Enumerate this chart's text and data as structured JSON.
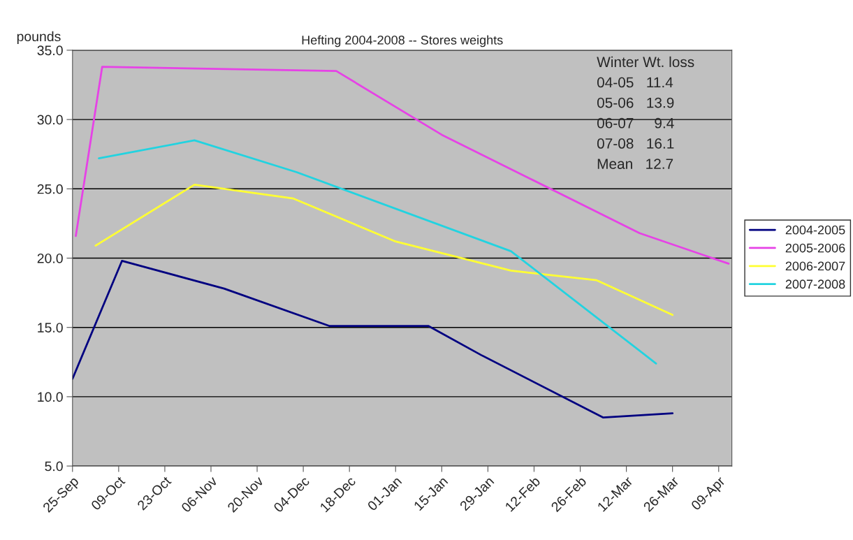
{
  "chart_data": {
    "type": "line",
    "title": "Hefting 2004-2008 -- Stores weights",
    "ylabel": "pounds",
    "series": [
      {
        "name": "2004-2005",
        "color": "#000080",
        "x": [
          "2004-09-25",
          "2004-10-10",
          "2004-11-10",
          "2004-12-12",
          "2005-01-11",
          "2005-01-27",
          "2005-03-05",
          "2005-03-26"
        ],
        "values": [
          11.3,
          19.8,
          17.8,
          15.1,
          15.1,
          13.0,
          8.5,
          8.8
        ]
      },
      {
        "name": "2005-2006",
        "color": "#e642e6",
        "x": [
          "2004-09-26",
          "2004-10-04",
          "2004-12-14",
          "2005-01-15",
          "2005-03-16",
          "2005-04-12"
        ],
        "values": [
          21.6,
          33.8,
          33.5,
          28.9,
          21.8,
          19.6
        ]
      },
      {
        "name": "2006-2007",
        "color": "#ffff33",
        "x": [
          "2004-10-02",
          "2004-11-01",
          "2004-12-01",
          "2005-01-01",
          "2005-02-05",
          "2005-03-03",
          "2005-03-26"
        ],
        "values": [
          20.9,
          25.3,
          24.3,
          21.2,
          19.1,
          18.4,
          15.9
        ]
      },
      {
        "name": "2007-2008",
        "color": "#22d3e0",
        "x": [
          "2004-10-03",
          "2004-11-01",
          "2004-12-02",
          "2005-02-05",
          "2005-03-21"
        ],
        "values": [
          27.2,
          28.5,
          26.2,
          20.5,
          12.4
        ]
      }
    ],
    "xlim": [
      "2004-09-25",
      "2005-04-13"
    ],
    "xticks": [
      {
        "value": "2004-09-25",
        "label": "25-Sep"
      },
      {
        "value": "2004-10-09",
        "label": "09-Oct"
      },
      {
        "value": "2004-10-23",
        "label": "23-Oct"
      },
      {
        "value": "2004-11-06",
        "label": "06-Nov"
      },
      {
        "value": "2004-11-20",
        "label": "20-Nov"
      },
      {
        "value": "2004-12-04",
        "label": "04-Dec"
      },
      {
        "value": "2004-12-18",
        "label": "18-Dec"
      },
      {
        "value": "2005-01-01",
        "label": "01-Jan"
      },
      {
        "value": "2005-01-15",
        "label": "15-Jan"
      },
      {
        "value": "2005-01-29",
        "label": "29-Jan"
      },
      {
        "value": "2005-02-12",
        "label": "12-Feb"
      },
      {
        "value": "2005-02-26",
        "label": "26-Feb"
      },
      {
        "value": "2005-03-12",
        "label": "12-Mar"
      },
      {
        "value": "2005-03-26",
        "label": "26-Mar"
      },
      {
        "value": "2005-04-09",
        "label": "09-Apr"
      }
    ],
    "ylim": [
      5,
      35
    ],
    "yticks": [
      {
        "value": 5,
        "label": "5.0"
      },
      {
        "value": 10,
        "label": "10.0"
      },
      {
        "value": 15,
        "label": "15.0"
      },
      {
        "value": 20,
        "label": "20.0"
      },
      {
        "value": 25,
        "label": "25.0"
      },
      {
        "value": 30,
        "label": "30.0"
      },
      {
        "value": 35,
        "label": "35.0"
      }
    ],
    "grid": "y",
    "legend": "right",
    "marker": "none",
    "line_style": "solid",
    "annotations": [
      "Winter Wt. loss",
      "04-05   11.4",
      "05-06   13.9",
      "06-07     9.4",
      "07-08   16.1",
      "Mean   12.7"
    ]
  }
}
